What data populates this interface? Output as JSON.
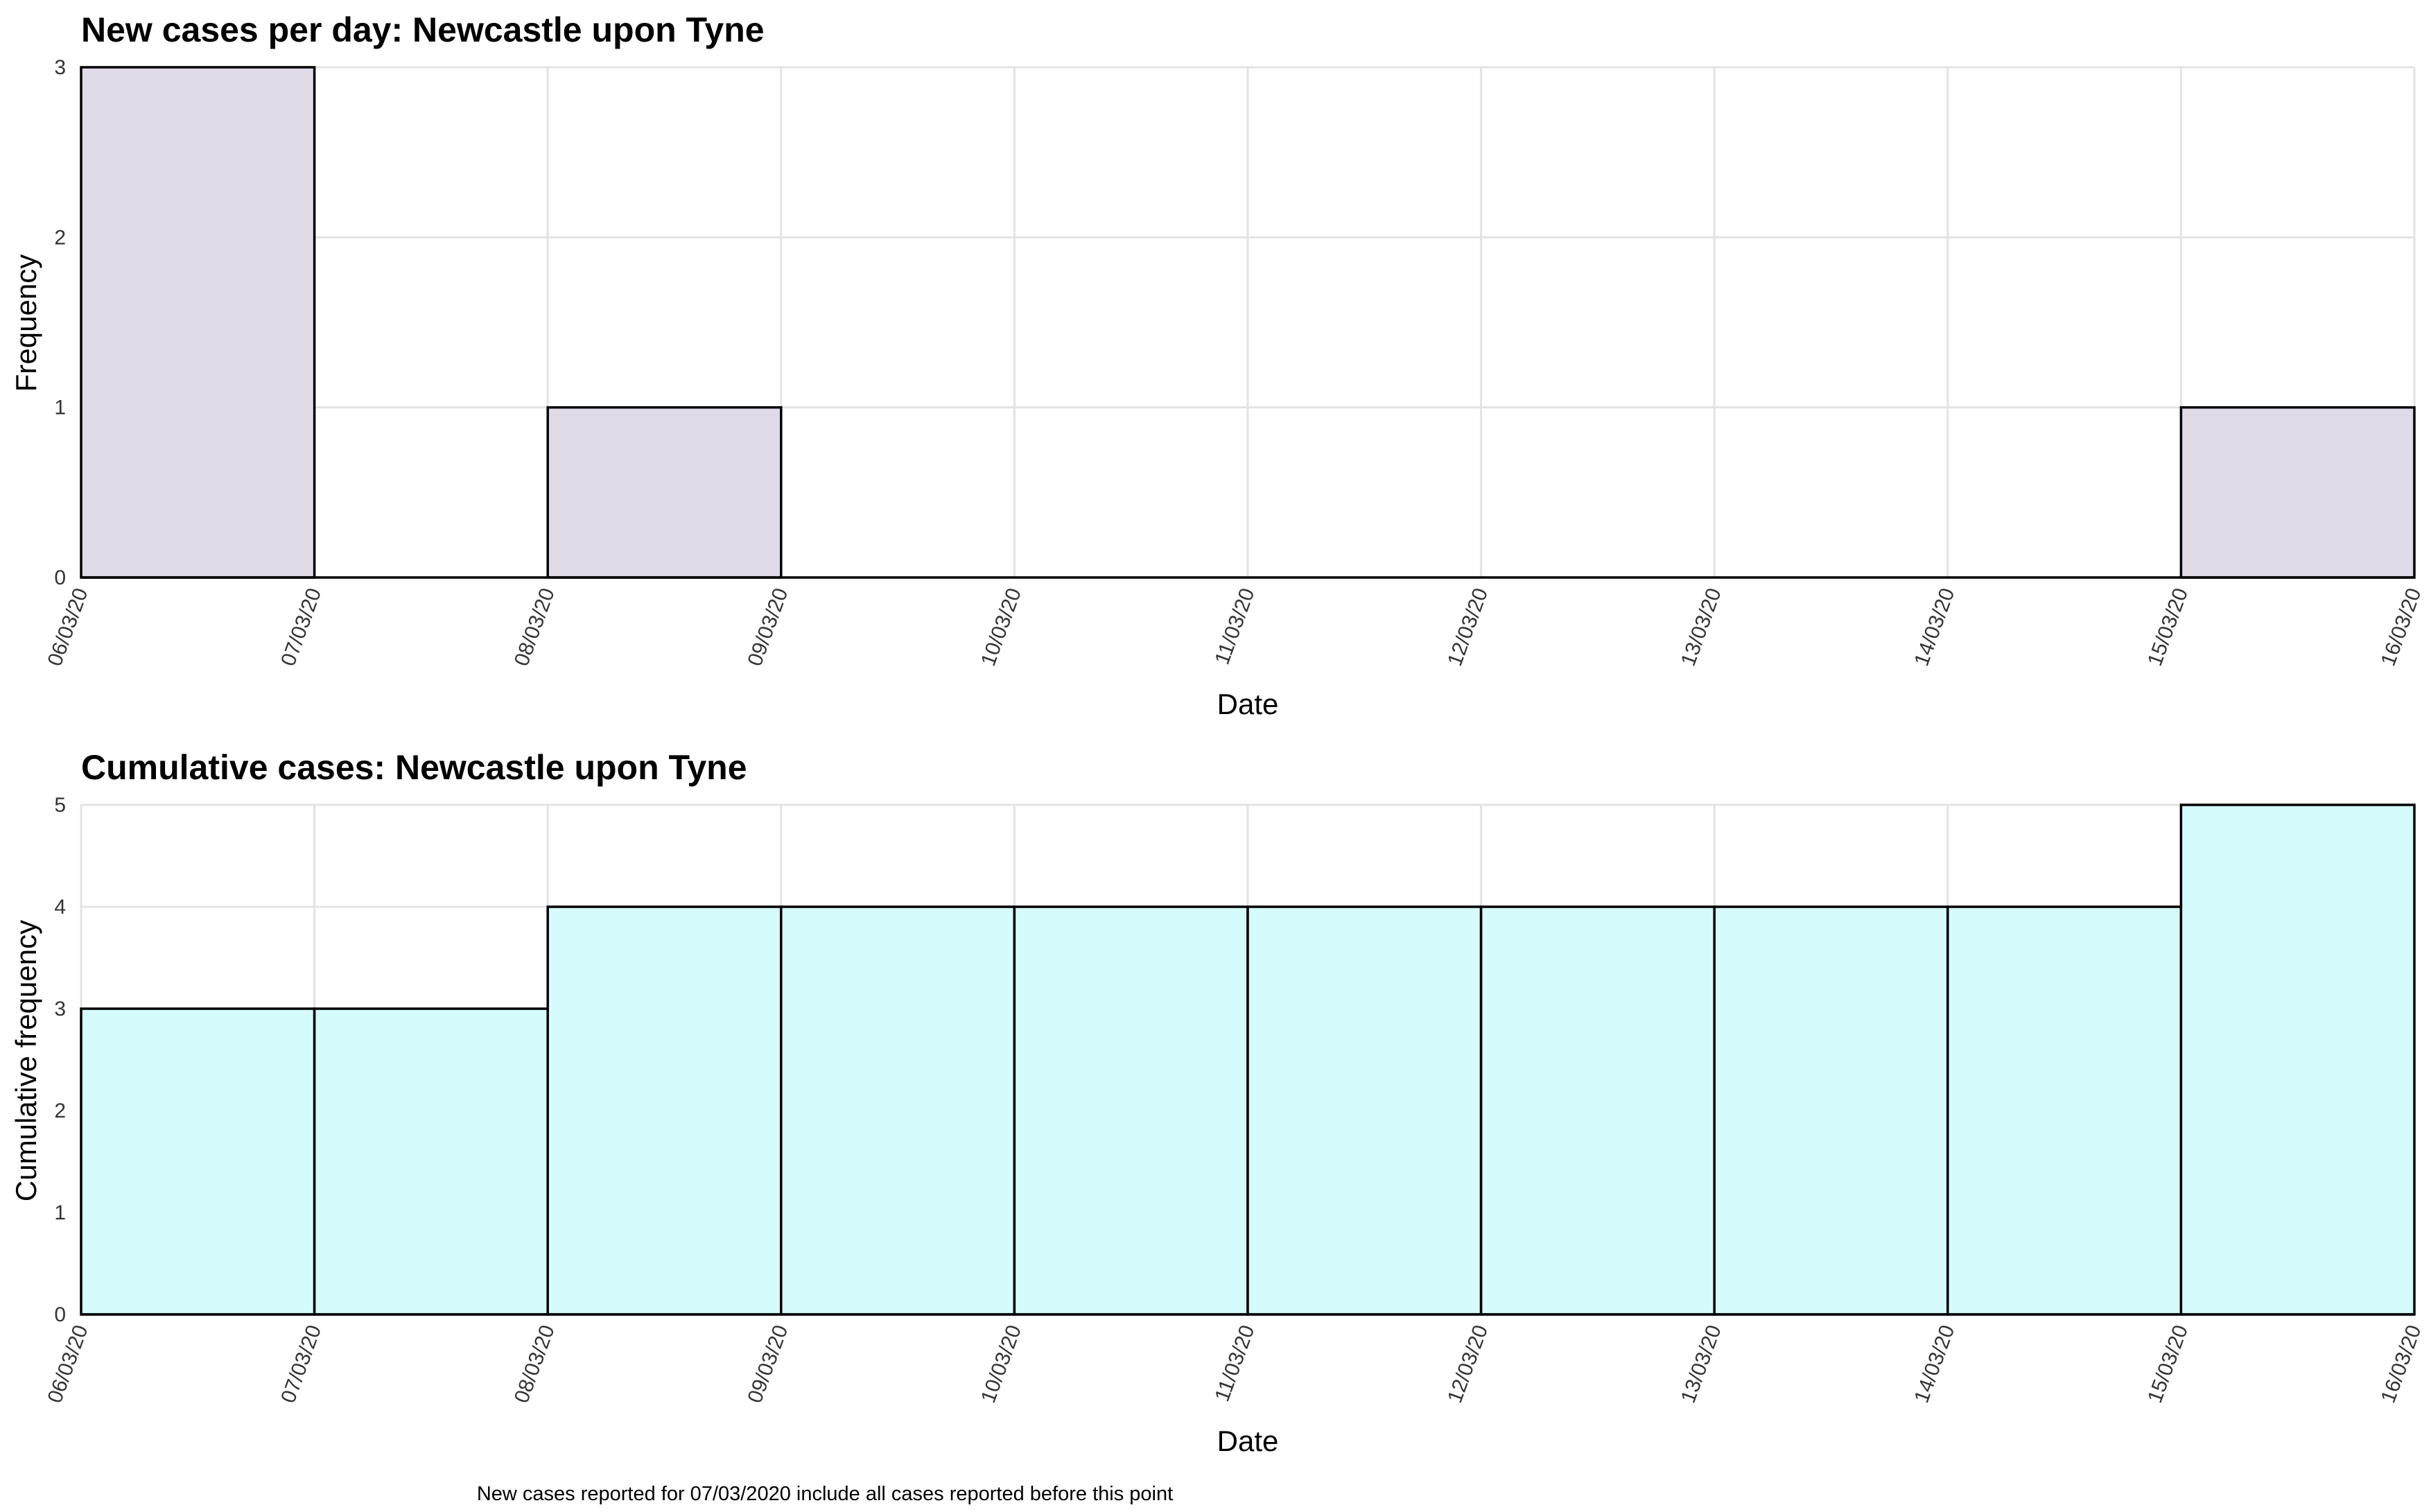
{
  "chart_data": [
    {
      "type": "bar",
      "title": "New cases per day: Newcastle upon Tyne",
      "xlabel": "Date",
      "ylabel": "Frequency",
      "ylim": [
        0,
        3
      ],
      "yticks": [
        "0",
        "1",
        "2",
        "3"
      ],
      "x_tick_labels": [
        "06/03/20",
        "07/03/20",
        "08/03/20",
        "09/03/20",
        "10/03/20",
        "11/03/20",
        "12/03/20",
        "13/03/20",
        "14/03/20",
        "15/03/20",
        "16/03/20"
      ],
      "bins": [
        {
          "start": "06/03/20",
          "end": "07/03/20",
          "value": 3
        },
        {
          "start": "07/03/20",
          "end": "08/03/20",
          "value": 0
        },
        {
          "start": "08/03/20",
          "end": "09/03/20",
          "value": 1
        },
        {
          "start": "09/03/20",
          "end": "10/03/20",
          "value": 0
        },
        {
          "start": "10/03/20",
          "end": "11/03/20",
          "value": 0
        },
        {
          "start": "11/03/20",
          "end": "12/03/20",
          "value": 0
        },
        {
          "start": "12/03/20",
          "end": "13/03/20",
          "value": 0
        },
        {
          "start": "13/03/20",
          "end": "14/03/20",
          "value": 0
        },
        {
          "start": "14/03/20",
          "end": "15/03/20",
          "value": 0
        },
        {
          "start": "15/03/20",
          "end": "16/03/20",
          "value": 1
        }
      ],
      "bar_color": "#dfd9e8",
      "grid": true
    },
    {
      "type": "bar",
      "title": "Cumulative cases: Newcastle upon Tyne",
      "xlabel": "Date",
      "ylabel": "Cumulative frequency",
      "ylim": [
        0,
        5
      ],
      "yticks": [
        "0",
        "1",
        "2",
        "3",
        "4",
        "5"
      ],
      "x_tick_labels": [
        "06/03/20",
        "07/03/20",
        "08/03/20",
        "09/03/20",
        "10/03/20",
        "11/03/20",
        "12/03/20",
        "13/03/20",
        "14/03/20",
        "15/03/20",
        "16/03/20"
      ],
      "bins": [
        {
          "start": "06/03/20",
          "end": "07/03/20",
          "value": 3
        },
        {
          "start": "07/03/20",
          "end": "08/03/20",
          "value": 3
        },
        {
          "start": "08/03/20",
          "end": "09/03/20",
          "value": 4
        },
        {
          "start": "09/03/20",
          "end": "10/03/20",
          "value": 4
        },
        {
          "start": "10/03/20",
          "end": "11/03/20",
          "value": 4
        },
        {
          "start": "11/03/20",
          "end": "12/03/20",
          "value": 4
        },
        {
          "start": "12/03/20",
          "end": "13/03/20",
          "value": 4
        },
        {
          "start": "13/03/20",
          "end": "14/03/20",
          "value": 4
        },
        {
          "start": "14/03/20",
          "end": "15/03/20",
          "value": 4
        },
        {
          "start": "15/03/20",
          "end": "16/03/20",
          "value": 5
        }
      ],
      "bar_color": "#d6fbfc",
      "grid": true
    }
  ],
  "caption": "New cases reported for 07/03/2020 include all cases reported before this point"
}
